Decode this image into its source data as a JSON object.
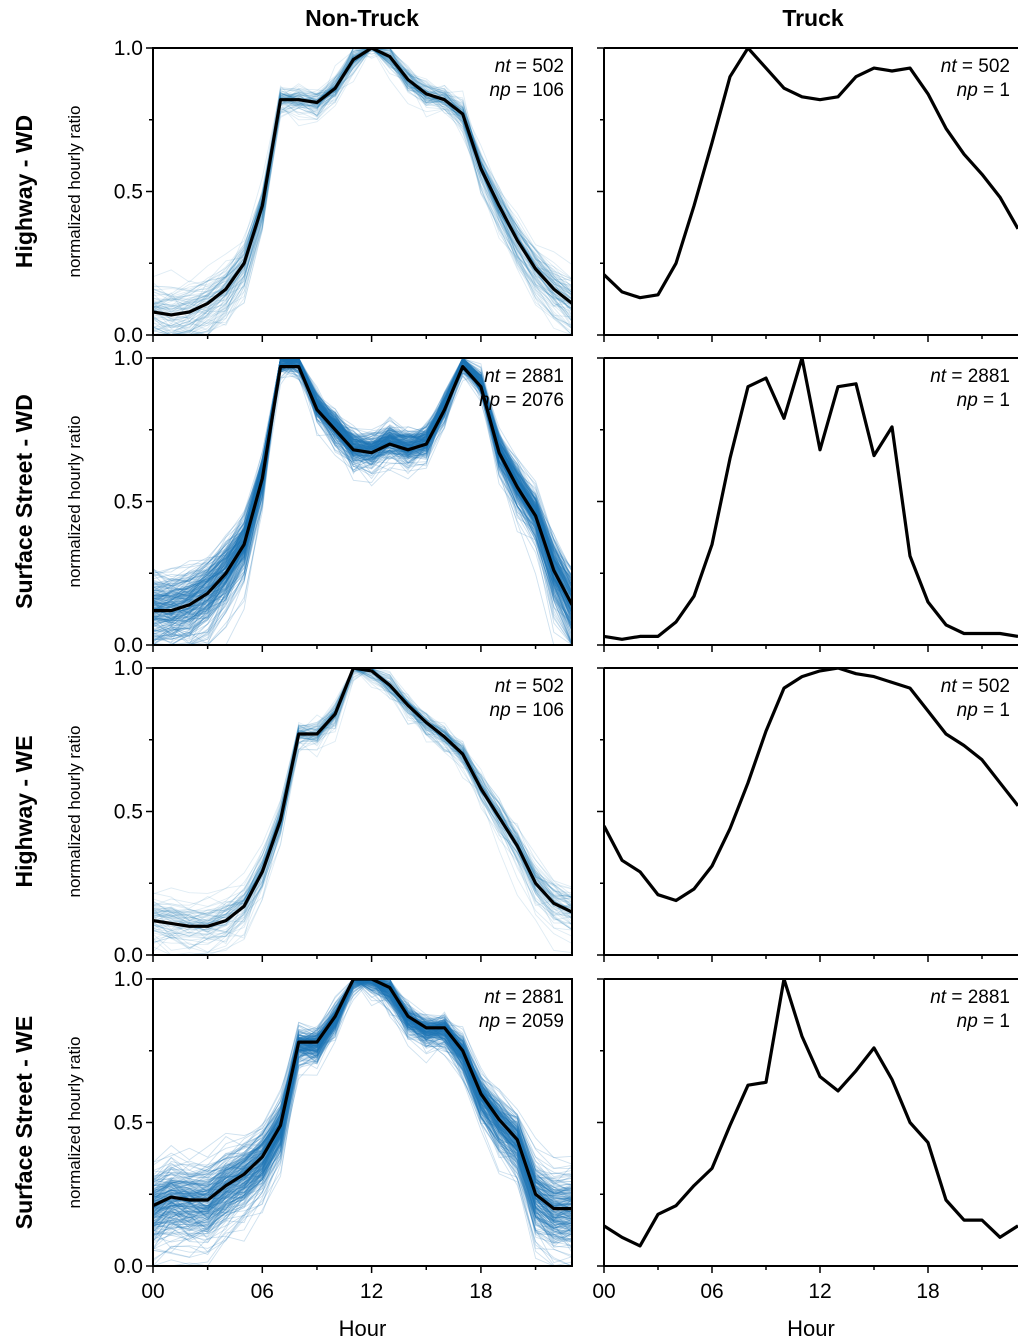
{
  "figure": {
    "col_titles": [
      "Non-Truck",
      "Truck"
    ],
    "row_titles": [
      "Highway - WD",
      "Surface Street - WD",
      "Highway - WE",
      "Surface Street - WE"
    ],
    "ylabel": "normalized hourly ratio",
    "xlabel": "Hour",
    "xticks": [
      "00",
      "06",
      "12",
      "18"
    ],
    "yticks": [
      "0.0",
      "0.5",
      "1.0"
    ],
    "colors": {
      "spaghetti": "#1f77b4",
      "mean": "#000000"
    }
  },
  "chart_data": [
    {
      "type": "line",
      "panel": "Highway - WD / Non-Truck",
      "x": [
        0,
        1,
        2,
        3,
        4,
        5,
        6,
        7,
        8,
        9,
        10,
        11,
        12,
        13,
        14,
        15,
        16,
        17,
        18,
        19,
        20,
        21,
        22,
        23
      ],
      "xlim": [
        0,
        23
      ],
      "ylim": [
        0,
        1
      ],
      "annotations": {
        "nt": "502",
        "np": "106"
      },
      "series": [
        {
          "values": [
            0.08,
            0.07,
            0.08,
            0.11,
            0.16,
            0.25,
            0.45,
            0.82,
            0.82,
            0.81,
            0.86,
            0.96,
            1.0,
            0.97,
            0.89,
            0.84,
            0.82,
            0.77,
            0.58,
            0.45,
            0.33,
            0.23,
            0.16,
            0.11
          ]
        }
      ],
      "density": 0.35,
      "spread": 0.16
    },
    {
      "type": "line",
      "panel": "Highway - WD / Truck",
      "x": [
        0,
        1,
        2,
        3,
        4,
        5,
        6,
        7,
        8,
        9,
        10,
        11,
        12,
        13,
        14,
        15,
        16,
        17,
        18,
        19,
        20,
        21,
        22,
        23
      ],
      "xlim": [
        0,
        23
      ],
      "ylim": [
        0,
        1
      ],
      "annotations": {
        "nt": "502",
        "np": "1"
      },
      "series": [
        {
          "values": [
            0.21,
            0.15,
            0.13,
            0.14,
            0.25,
            0.45,
            0.67,
            0.9,
            1.0,
            0.93,
            0.86,
            0.83,
            0.82,
            0.83,
            0.9,
            0.93,
            0.92,
            0.93,
            0.84,
            0.72,
            0.63,
            0.56,
            0.48,
            0.37
          ]
        }
      ]
    },
    {
      "type": "line",
      "panel": "Surface Street - WD / Non-Truck",
      "x": [
        0,
        1,
        2,
        3,
        4,
        5,
        6,
        7,
        8,
        9,
        10,
        11,
        12,
        13,
        14,
        15,
        16,
        17,
        18,
        19,
        20,
        21,
        22,
        23
      ],
      "xlim": [
        0,
        23
      ],
      "ylim": [
        0,
        1
      ],
      "annotations": {
        "nt": "2881",
        "np": "2076"
      },
      "series": [
        {
          "values": [
            0.12,
            0.12,
            0.14,
            0.18,
            0.25,
            0.35,
            0.58,
            0.97,
            0.97,
            0.82,
            0.75,
            0.68,
            0.67,
            0.7,
            0.68,
            0.7,
            0.82,
            0.97,
            0.9,
            0.67,
            0.55,
            0.45,
            0.26,
            0.14
          ]
        }
      ],
      "density": 1.0,
      "spread": 0.22
    },
    {
      "type": "line",
      "panel": "Surface Street - WD / Truck",
      "x": [
        0,
        1,
        2,
        3,
        4,
        5,
        6,
        7,
        8,
        9,
        10,
        11,
        12,
        13,
        14,
        15,
        16,
        17,
        18,
        19,
        20,
        21,
        22,
        23
      ],
      "xlim": [
        0,
        23
      ],
      "ylim": [
        0,
        1
      ],
      "annotations": {
        "nt": "2881",
        "np": "1"
      },
      "series": [
        {
          "values": [
            0.03,
            0.02,
            0.03,
            0.03,
            0.08,
            0.17,
            0.35,
            0.65,
            0.9,
            0.93,
            0.79,
            1.0,
            0.68,
            0.9,
            0.91,
            0.66,
            0.76,
            0.31,
            0.15,
            0.07,
            0.04,
            0.04,
            0.04,
            0.03
          ]
        }
      ]
    },
    {
      "type": "line",
      "panel": "Highway - WE / Non-Truck",
      "x": [
        0,
        1,
        2,
        3,
        4,
        5,
        6,
        7,
        8,
        9,
        10,
        11,
        12,
        13,
        14,
        15,
        16,
        17,
        18,
        19,
        20,
        21,
        22,
        23
      ],
      "xlim": [
        0,
        23
      ],
      "ylim": [
        0,
        1
      ],
      "annotations": {
        "nt": "502",
        "np": "106"
      },
      "series": [
        {
          "values": [
            0.12,
            0.11,
            0.1,
            0.1,
            0.12,
            0.17,
            0.29,
            0.47,
            0.77,
            0.77,
            0.84,
            1.0,
            0.99,
            0.94,
            0.87,
            0.81,
            0.76,
            0.7,
            0.58,
            0.48,
            0.38,
            0.25,
            0.18,
            0.15
          ]
        }
      ],
      "density": 0.3,
      "spread": 0.15
    },
    {
      "type": "line",
      "panel": "Highway - WE / Truck",
      "x": [
        0,
        1,
        2,
        3,
        4,
        5,
        6,
        7,
        8,
        9,
        10,
        11,
        12,
        13,
        14,
        15,
        16,
        17,
        18,
        19,
        20,
        21,
        22,
        23
      ],
      "xlim": [
        0,
        23
      ],
      "ylim": [
        0,
        1
      ],
      "annotations": {
        "nt": "502",
        "np": "1"
      },
      "series": [
        {
          "values": [
            0.45,
            0.33,
            0.29,
            0.21,
            0.19,
            0.23,
            0.31,
            0.44,
            0.6,
            0.78,
            0.93,
            0.97,
            0.99,
            1.0,
            0.98,
            0.97,
            0.95,
            0.93,
            0.85,
            0.77,
            0.73,
            0.68,
            0.6,
            0.52
          ]
        }
      ]
    },
    {
      "type": "line",
      "panel": "Surface Street - WE / Non-Truck",
      "x": [
        0,
        1,
        2,
        3,
        4,
        5,
        6,
        7,
        8,
        9,
        10,
        11,
        12,
        13,
        14,
        15,
        16,
        17,
        18,
        19,
        20,
        21,
        22,
        23
      ],
      "xlim": [
        0,
        23
      ],
      "ylim": [
        0,
        1
      ],
      "annotations": {
        "nt": "2881",
        "np": "2059"
      },
      "series": [
        {
          "values": [
            0.21,
            0.24,
            0.23,
            0.23,
            0.28,
            0.32,
            0.38,
            0.49,
            0.78,
            0.78,
            0.87,
            1.0,
            1.0,
            0.97,
            0.87,
            0.83,
            0.83,
            0.75,
            0.6,
            0.51,
            0.44,
            0.25,
            0.2,
            0.2
          ]
        }
      ],
      "density": 1.0,
      "spread": 0.24
    },
    {
      "type": "line",
      "panel": "Surface Street - WE / Truck",
      "x": [
        0,
        1,
        2,
        3,
        4,
        5,
        6,
        7,
        8,
        9,
        10,
        11,
        12,
        13,
        14,
        15,
        16,
        17,
        18,
        19,
        20,
        21,
        22,
        23
      ],
      "xlim": [
        0,
        23
      ],
      "ylim": [
        0,
        1
      ],
      "annotations": {
        "nt": "2881",
        "np": "1"
      },
      "series": [
        {
          "values": [
            0.14,
            0.1,
            0.07,
            0.18,
            0.21,
            0.28,
            0.34,
            0.49,
            0.63,
            0.64,
            1.0,
            0.8,
            0.66,
            0.61,
            0.68,
            0.76,
            0.65,
            0.5,
            0.43,
            0.23,
            0.16,
            0.16,
            0.1,
            0.14
          ]
        }
      ]
    }
  ]
}
